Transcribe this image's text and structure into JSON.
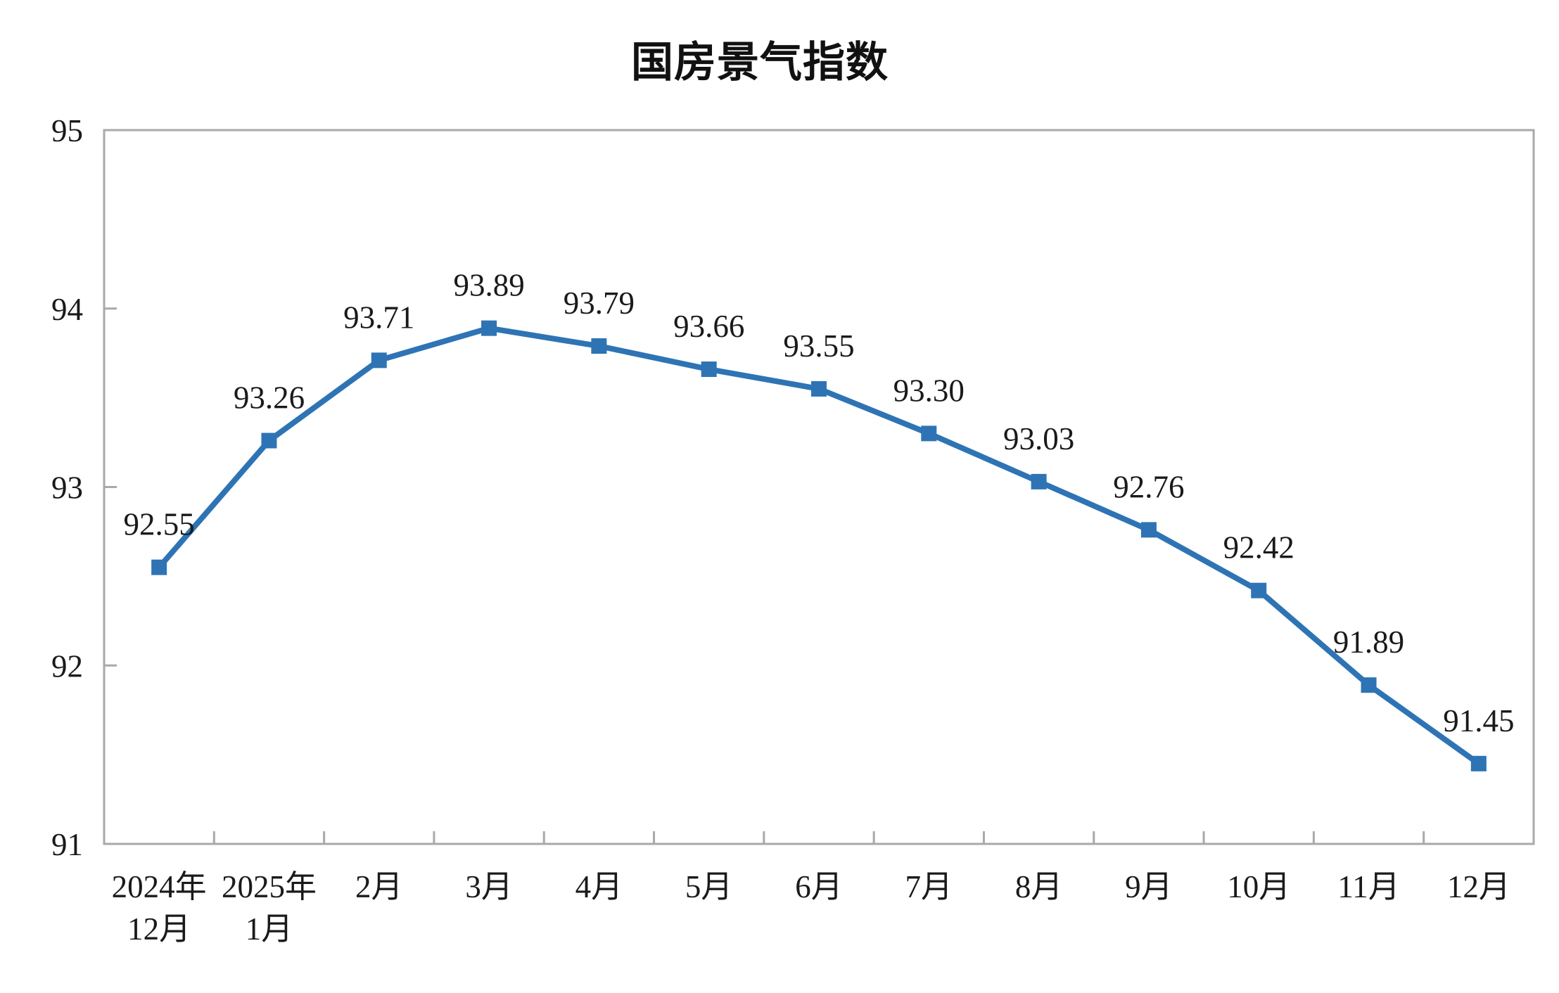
{
  "page": {
    "background": "#ffffff"
  },
  "chart_data": {
    "type": "line",
    "title": "国房景气指数",
    "categories": [
      "2024年\n12月",
      "2025年\n1月",
      "2月",
      "3月",
      "4月",
      "5月",
      "6月",
      "7月",
      "8月",
      "9月",
      "10月",
      "11月",
      "12月"
    ],
    "values": [
      92.55,
      93.26,
      93.71,
      93.89,
      93.79,
      93.66,
      93.55,
      93.3,
      93.03,
      92.76,
      92.42,
      91.89,
      91.45
    ],
    "data_labels": [
      "92.55",
      "93.26",
      "93.71",
      "93.89",
      "93.79",
      "93.66",
      "93.55",
      "93.30",
      "93.03",
      "92.76",
      "92.42",
      "91.89",
      "91.45"
    ],
    "xlabel": "",
    "ylabel": "",
    "ylim": [
      91,
      95
    ],
    "yticks": [
      "91",
      "92",
      "93",
      "94",
      "95"
    ],
    "grid": false,
    "legend": "none",
    "marker": "square",
    "colors": {
      "series": "#2E74B5",
      "axis": "#A9A9A9",
      "text": "#1a1a1a"
    }
  }
}
